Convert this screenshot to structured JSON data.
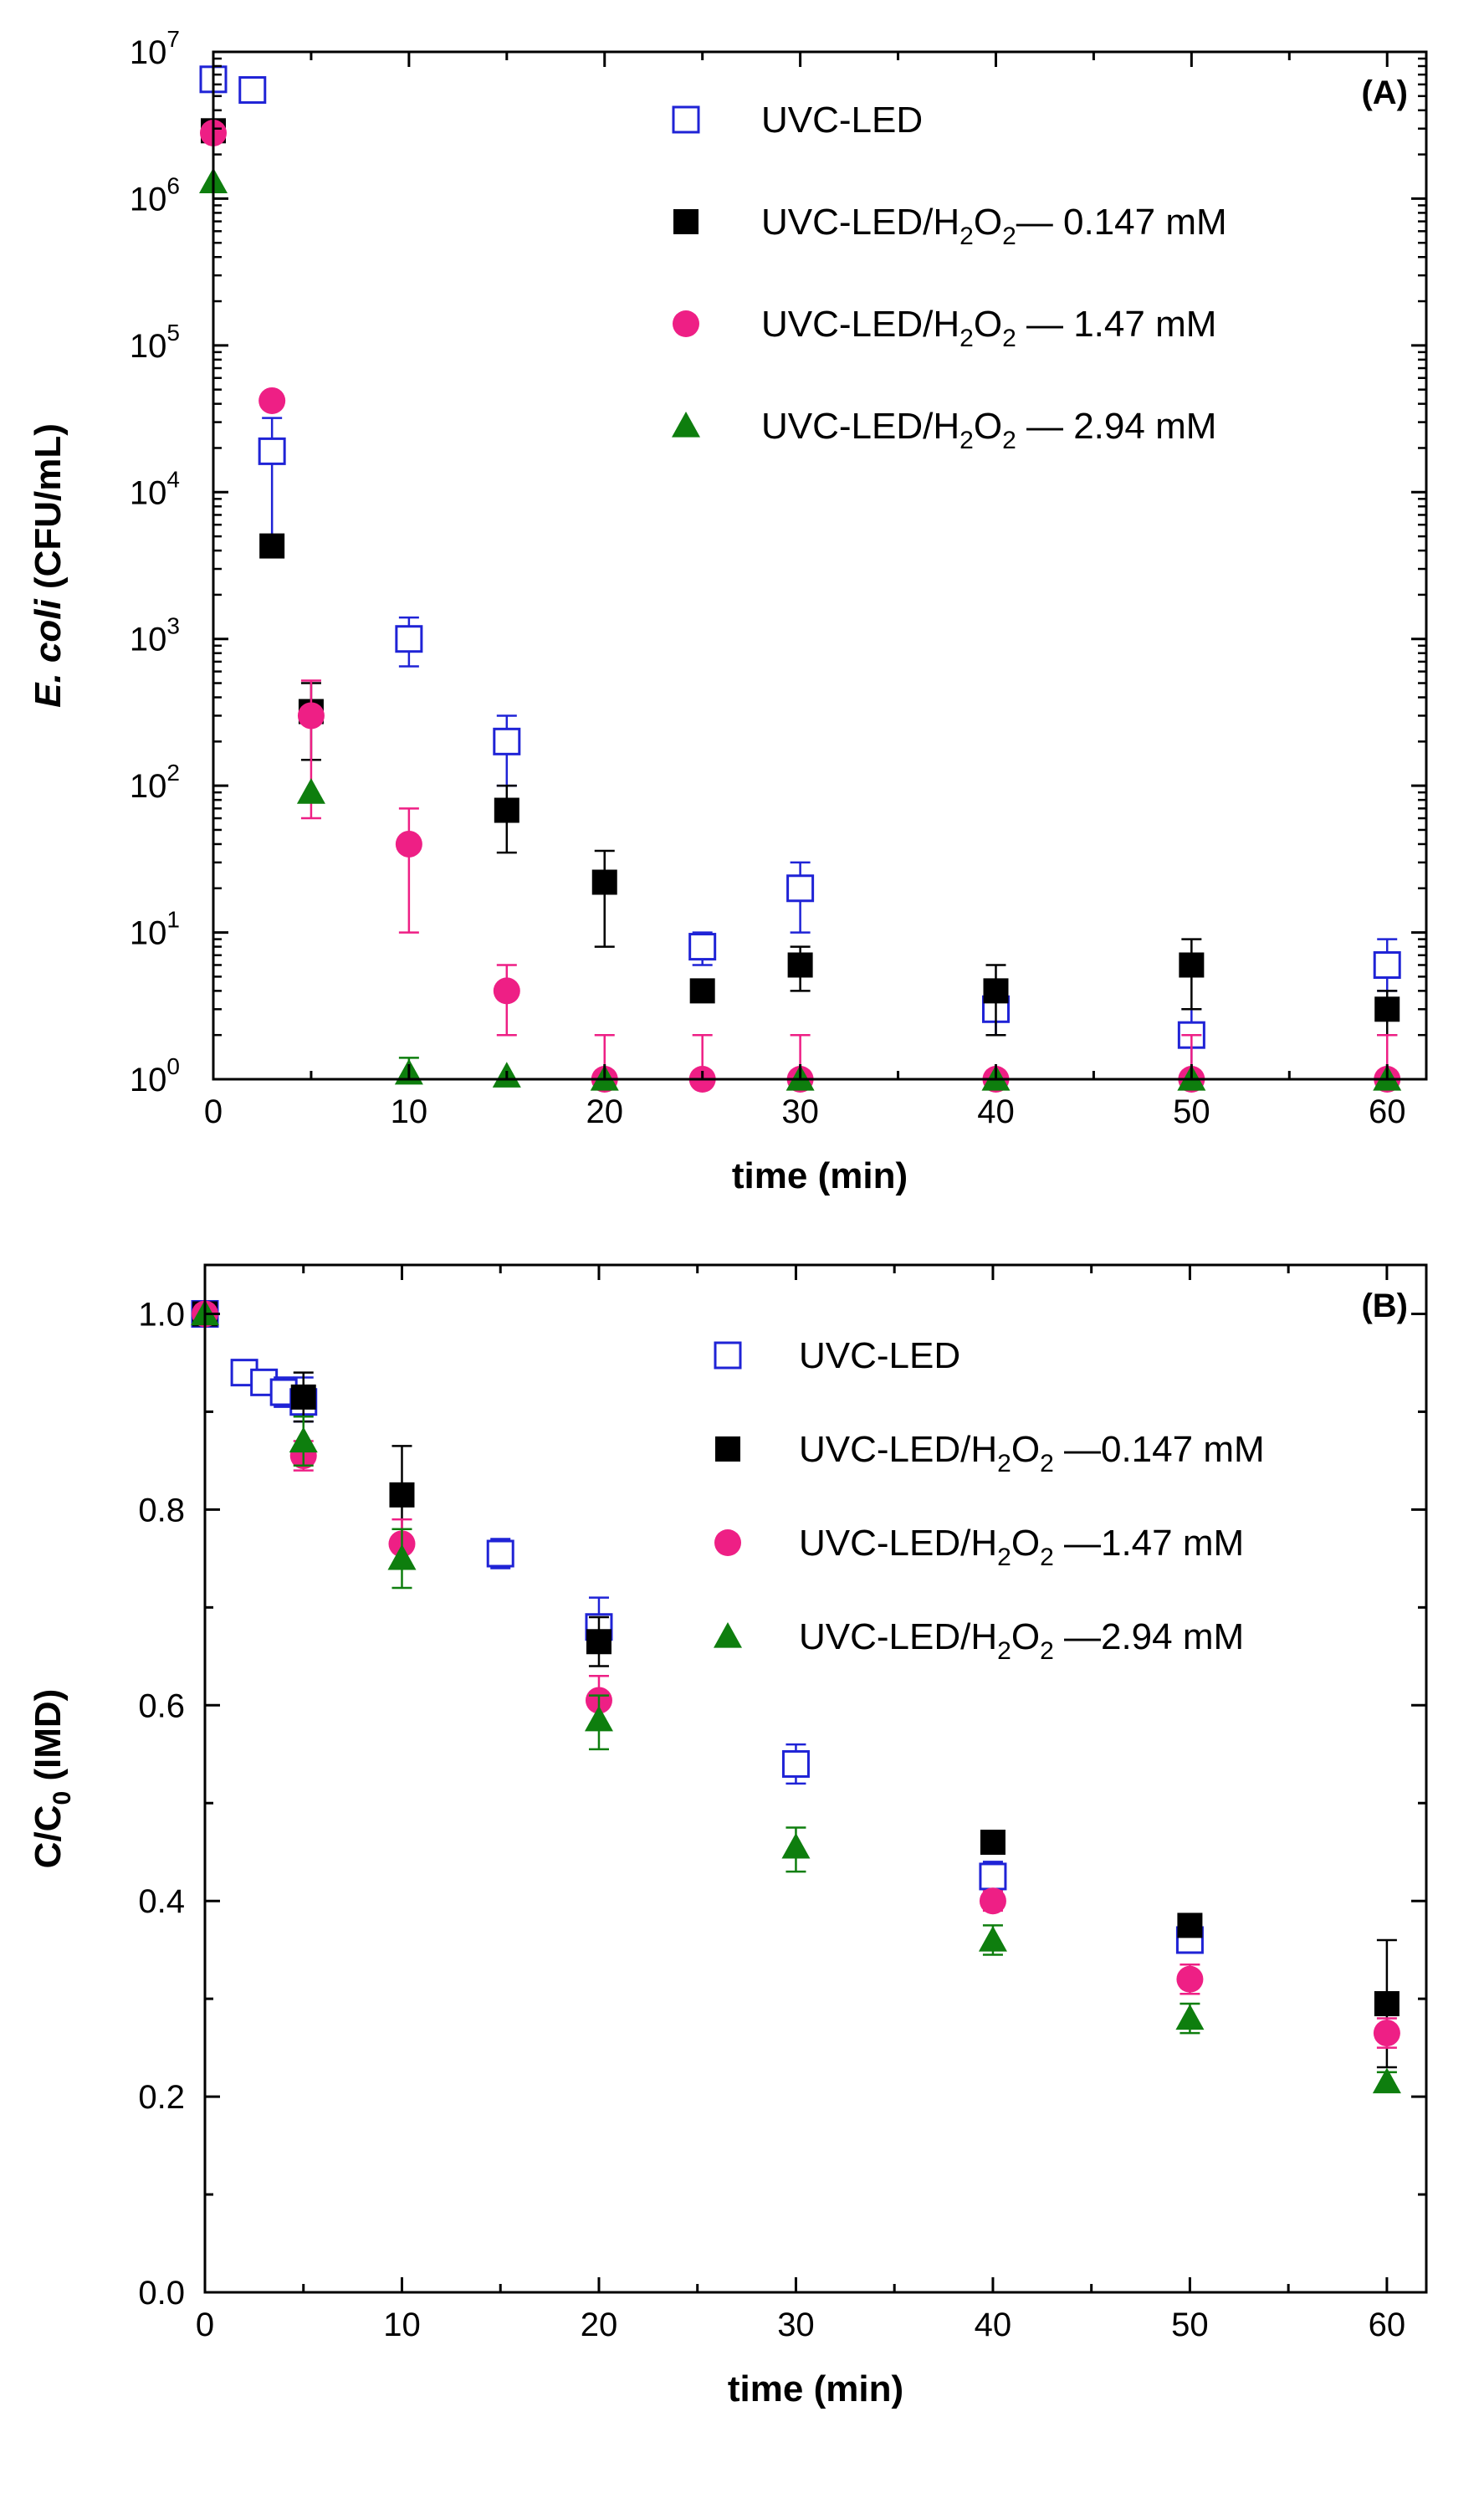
{
  "chart_data": [
    {
      "type": "scatter",
      "panel_label": "(A)",
      "xlabel": "time (min)",
      "ylabel_italic": "E. coli",
      "ylabel_rest": " (CFU/mL)",
      "y_scale": "log",
      "xlim": [
        0,
        62
      ],
      "ylim": [
        1,
        10000000
      ],
      "x_ticks": [
        0,
        10,
        20,
        30,
        40,
        50,
        60
      ],
      "x_tick_labels": [
        "0",
        "10",
        "20",
        "30",
        "40",
        "50",
        "60"
      ],
      "y_ticks": [
        1,
        10,
        100,
        1000,
        10000,
        100000,
        1000000,
        10000000
      ],
      "y_tick_base": "10",
      "y_tick_exponents": [
        "0",
        "1",
        "2",
        "3",
        "4",
        "5",
        "6",
        "7"
      ],
      "legend_position": "top-right",
      "series": [
        {
          "label_base": "UVC-LED",
          "label_sub": "",
          "label_rest": "",
          "marker": "open-square",
          "color": "#1f23d6",
          "x": [
            0,
            2,
            3,
            10,
            15,
            25,
            30,
            40,
            50,
            60
          ],
          "y": [
            6500000,
            5500000,
            19000,
            1000,
            200,
            8,
            20,
            3,
            2,
            6
          ],
          "err_hi": [
            null,
            null,
            32000,
            1400,
            300,
            10,
            30,
            4,
            3,
            9
          ],
          "err_lo": [
            null,
            null,
            4500,
            650,
            100,
            6,
            10,
            2,
            1,
            4
          ]
        },
        {
          "label_base": "UVC-LED/H",
          "label_sub": "2",
          "label_sub2": "2",
          "label_rest": "— 0.147 mM",
          "marker": "filled-square",
          "color": "#000000",
          "x": [
            0,
            3,
            5,
            15,
            20,
            25,
            30,
            40,
            50,
            60
          ],
          "y": [
            2900000,
            4300,
            320,
            68,
            22,
            4,
            6,
            4,
            6,
            3
          ],
          "err_hi": [
            null,
            null,
            500,
            100,
            36,
            null,
            8,
            6,
            9,
            4
          ],
          "err_lo": [
            null,
            null,
            150,
            35,
            8,
            null,
            4,
            2,
            3,
            2
          ]
        },
        {
          "label_base": "UVC-LED/H",
          "label_sub": "2",
          "label_sub2": "2",
          "label_rest": " — 1.47 mM",
          "marker": "filled-circle",
          "color": "#ee1f85",
          "x": [
            0,
            3,
            5,
            10,
            15,
            20,
            25,
            30,
            40,
            50,
            60
          ],
          "y": [
            2800000,
            42000,
            300,
            40,
            4,
            1,
            1,
            1,
            1,
            1,
            1
          ],
          "err_hi": [
            null,
            null,
            520,
            70,
            6,
            2,
            2,
            2,
            null,
            2,
            2
          ],
          "err_lo": [
            null,
            null,
            60,
            10,
            2,
            null,
            null,
            null,
            null,
            null,
            null
          ]
        },
        {
          "label_base": "UVC-LED/H",
          "label_sub": "2",
          "label_sub2": "2",
          "label_rest": " — 2.94 mM",
          "marker": "filled-triangle",
          "color": "#0e7e0e",
          "x": [
            0,
            5,
            10,
            15,
            20,
            30,
            40,
            50,
            60
          ],
          "y": [
            1300000,
            90,
            1.1,
            1.05,
            1,
            1,
            1,
            1,
            1
          ],
          "err_hi": [
            null,
            null,
            1.4,
            null,
            null,
            null,
            null,
            null,
            null
          ],
          "err_lo": [
            null,
            null,
            null,
            null,
            null,
            null,
            null,
            null,
            null
          ]
        }
      ]
    },
    {
      "type": "scatter",
      "panel_label": "(B)",
      "xlabel": "time (min)",
      "ylabel_base": "C/C",
      "ylabel_sub": "0",
      "ylabel_rest": " (IMD)",
      "y_scale": "linear",
      "xlim": [
        0,
        62
      ],
      "ylim": [
        0,
        1.05
      ],
      "x_ticks": [
        0,
        10,
        20,
        30,
        40,
        50,
        60
      ],
      "x_tick_labels": [
        "0",
        "10",
        "20",
        "30",
        "40",
        "50",
        "60"
      ],
      "y_ticks": [
        0,
        0.2,
        0.4,
        0.6,
        0.8,
        1.0
      ],
      "y_tick_labels": [
        "0.0",
        "0.2",
        "0.4",
        "0.6",
        "0.8",
        "1.0"
      ],
      "legend_position": "top-right",
      "series": [
        {
          "label_base": "UVC-LED",
          "label_sub": "",
          "label_rest": "",
          "marker": "open-square",
          "color": "#1f23d6",
          "x": [
            0,
            2,
            3,
            4,
            5,
            15,
            20,
            30,
            40,
            50
          ],
          "y": [
            1.0,
            0.94,
            0.93,
            0.92,
            0.91,
            0.755,
            0.68,
            0.54,
            0.425,
            0.36
          ],
          "err_hi": [
            null,
            null,
            null,
            0.935,
            0.935,
            0.77,
            0.71,
            0.56,
            0.44,
            null
          ],
          "err_lo": [
            null,
            null,
            null,
            0.905,
            0.89,
            0.74,
            0.66,
            0.52,
            0.41,
            null
          ]
        },
        {
          "label_base": "UVC-LED/H",
          "label_sub": "2",
          "label_sub2": "2",
          "label_rest": " —0.147 mM",
          "marker": "filled-square",
          "color": "#000000",
          "x": [
            0,
            5,
            10,
            20,
            40,
            50,
            60
          ],
          "y": [
            1.0,
            0.915,
            0.815,
            0.665,
            0.46,
            0.375,
            0.295
          ],
          "err_hi": [
            null,
            0.94,
            0.865,
            0.69,
            null,
            null,
            0.36
          ],
          "err_lo": [
            null,
            0.89,
            0.77,
            0.64,
            null,
            null,
            0.23
          ]
        },
        {
          "label_base": "UVC-LED/H",
          "label_sub": "2",
          "label_sub2": "2",
          "label_rest": " —1.47 mM",
          "marker": "filled-circle",
          "color": "#ee1f85",
          "x": [
            0,
            5,
            10,
            20,
            40,
            50,
            60
          ],
          "y": [
            1.0,
            0.855,
            0.765,
            0.605,
            0.4,
            0.32,
            0.265
          ],
          "err_hi": [
            null,
            0.87,
            0.79,
            0.63,
            0.41,
            0.335,
            0.28
          ],
          "err_lo": [
            null,
            0.84,
            0.74,
            0.58,
            0.39,
            0.305,
            0.25
          ]
        },
        {
          "label_base": "UVC-LED/H",
          "label_sub": "2",
          "label_sub2": "2",
          "label_rest": " —2.94 mM",
          "marker": "filled-triangle",
          "color": "#0e7e0e",
          "x": [
            0,
            5,
            10,
            20,
            30,
            40,
            50,
            60
          ],
          "y": [
            1.0,
            0.87,
            0.75,
            0.585,
            0.455,
            0.36,
            0.28,
            0.215
          ],
          "err_hi": [
            null,
            0.895,
            0.78,
            0.61,
            0.475,
            0.375,
            0.295,
            0.225
          ],
          "err_lo": [
            null,
            0.845,
            0.72,
            0.555,
            0.43,
            0.345,
            0.265,
            0.205
          ]
        }
      ]
    }
  ]
}
